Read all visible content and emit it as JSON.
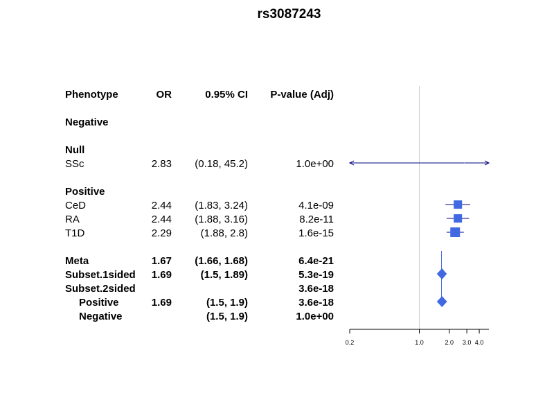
{
  "title": "rs3087243",
  "table": {
    "headers": {
      "phenotype": "Phenotype",
      "or": "OR",
      "ci": "0.95% CI",
      "pvalue": "P-value (Adj)"
    },
    "rows": [
      {
        "phenotype": "Negative",
        "or": "",
        "ci": "",
        "pvalue": "",
        "bold": true,
        "indent": 0
      },
      {
        "phenotype": "Null",
        "or": "",
        "ci": "",
        "pvalue": "",
        "bold": true,
        "indent": 0
      },
      {
        "phenotype": "SSc",
        "or": "2.83",
        "ci": "(0.18, 45.2)",
        "pvalue": "1.0e+00",
        "bold": false,
        "indent": 0
      },
      {
        "phenotype": "Positive",
        "or": "",
        "ci": "",
        "pvalue": "",
        "bold": true,
        "indent": 0
      },
      {
        "phenotype": "CeD",
        "or": "2.44",
        "ci": "(1.83, 3.24)",
        "pvalue": "4.1e-09",
        "bold": false,
        "indent": 0
      },
      {
        "phenotype": "RA",
        "or": "2.44",
        "ci": "(1.88, 3.16)",
        "pvalue": "8.2e-11",
        "bold": false,
        "indent": 0
      },
      {
        "phenotype": "T1D",
        "or": "2.29",
        "ci": "(1.88, 2.8)",
        "pvalue": "1.6e-15",
        "bold": false,
        "indent": 0
      },
      {
        "phenotype": "Meta",
        "or": "1.67",
        "ci": "(1.66, 1.68)",
        "pvalue": "6.4e-21",
        "bold": true,
        "indent": 0
      },
      {
        "phenotype": "Subset.1sided",
        "or": "1.69",
        "ci": "(1.5, 1.89)",
        "pvalue": "5.3e-19",
        "bold": true,
        "indent": 0
      },
      {
        "phenotype": "Subset.2sided",
        "or": "",
        "ci": "",
        "pvalue": "3.6e-18",
        "bold": true,
        "indent": 0
      },
      {
        "phenotype": "Positive",
        "or": "1.69",
        "ci": "(1.5, 1.9)",
        "pvalue": "3.6e-18",
        "bold": true,
        "indent": 1
      },
      {
        "phenotype": "Negative",
        "or": "",
        "ci": "(1.5, 1.9)",
        "pvalue": "1.0e+00",
        "bold": true,
        "indent": 1
      }
    ]
  },
  "chart_data": {
    "type": "forest",
    "title": "rs3087243",
    "x_scale": "log",
    "xlim": [
      0.2,
      5
    ],
    "x_ticks": [
      0.2,
      1.0,
      2.0,
      3.0,
      4.0
    ],
    "x_tick_labels": [
      "0.2",
      "1.0",
      "2.0",
      "3.0",
      "4.0"
    ],
    "reference_line": 1.0,
    "studies": [
      {
        "name": "SSc",
        "or": 2.83,
        "lower": 0.18,
        "upper": 45.2,
        "shape": "square",
        "clipped_left": true,
        "clipped_right": true
      },
      {
        "name": "CeD",
        "or": 2.44,
        "lower": 1.83,
        "upper": 3.24,
        "shape": "square"
      },
      {
        "name": "RA",
        "or": 2.44,
        "lower": 1.88,
        "upper": 3.16,
        "shape": "square"
      },
      {
        "name": "T1D",
        "or": 2.29,
        "lower": 1.88,
        "upper": 2.8,
        "shape": "square"
      }
    ],
    "summaries": [
      {
        "name": "Subset.1sided",
        "or": 1.69,
        "lower": 1.5,
        "upper": 1.89,
        "shape": "diamond"
      },
      {
        "name": "Positive",
        "or": 1.69,
        "lower": 1.5,
        "upper": 1.9,
        "shape": "diamond"
      }
    ],
    "colors": {
      "box": "#4169E1",
      "ci_line": "#000080",
      "ref_line": "#cccccc"
    }
  }
}
